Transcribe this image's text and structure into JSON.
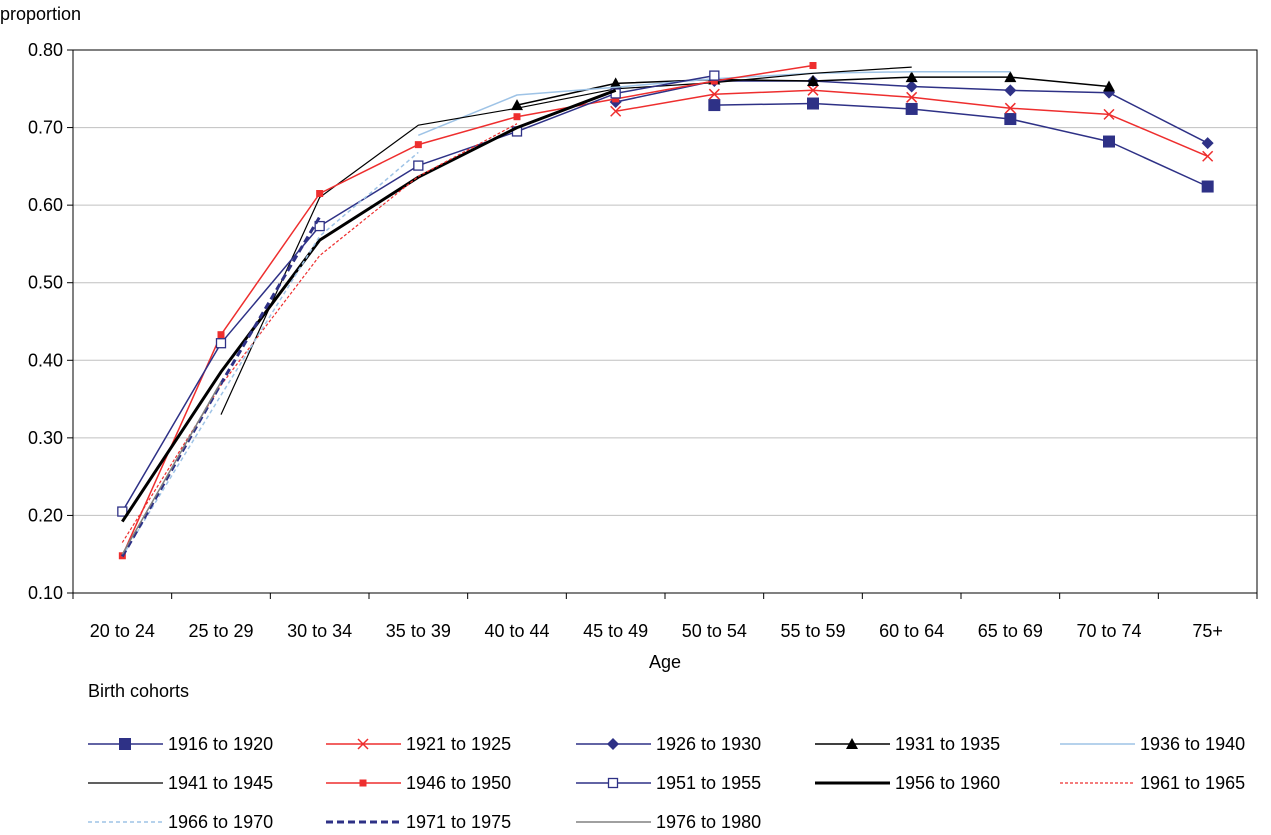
{
  "chart_data": {
    "type": "line",
    "title": "",
    "ylabel": "proportion",
    "xlabel": "Age",
    "legend_title": "Birth cohorts",
    "legend_position": "bottom",
    "grid": true,
    "ylim": [
      0.1,
      0.8
    ],
    "yticks": [
      "0.10",
      "0.20",
      "0.30",
      "0.40",
      "0.50",
      "0.60",
      "0.70",
      "0.80"
    ],
    "categories": [
      "20 to 24",
      "25 to 29",
      "30 to 34",
      "35 to 39",
      "40 to 44",
      "45 to 49",
      "50 to 54",
      "55 to 59",
      "60 to 64",
      "65 to 69",
      "70 to 74",
      "75+"
    ],
    "series": [
      {
        "name": "1916 to 1920",
        "color": "#2e3186",
        "width": 1.5,
        "dash": "",
        "marker": "square-lg",
        "values": [
          null,
          null,
          null,
          null,
          null,
          null,
          0.729,
          0.731,
          0.724,
          0.711,
          0.682,
          0.624
        ]
      },
      {
        "name": "1921 to 1925",
        "color": "#ee2e2e",
        "width": 1.5,
        "dash": "",
        "marker": "x",
        "values": [
          null,
          null,
          null,
          null,
          null,
          0.721,
          0.743,
          0.748,
          0.739,
          0.725,
          0.717,
          0.663
        ]
      },
      {
        "name": "1926 to 1930",
        "color": "#2e3186",
        "width": 1.5,
        "dash": "",
        "marker": "diamond",
        "values": [
          null,
          null,
          null,
          null,
          null,
          0.733,
          0.76,
          0.76,
          0.753,
          0.748,
          0.745,
          0.68
        ]
      },
      {
        "name": "1931 to 1935",
        "color": "#000000",
        "width": 1.5,
        "dash": "",
        "marker": "triangle",
        "values": [
          null,
          null,
          null,
          null,
          0.729,
          0.757,
          0.762,
          0.76,
          0.765,
          0.765,
          0.753,
          null
        ]
      },
      {
        "name": "1936 to 1940",
        "color": "#9ec3e6",
        "width": 1.5,
        "dash": "",
        "marker": "none",
        "values": [
          null,
          null,
          null,
          0.69,
          0.742,
          0.752,
          0.763,
          0.77,
          0.772,
          0.772,
          null,
          null
        ]
      },
      {
        "name": "1941 to 1945",
        "color": "#000000",
        "width": 1.2,
        "dash": "",
        "marker": "none",
        "values": [
          null,
          0.33,
          0.61,
          0.703,
          0.725,
          0.75,
          0.758,
          0.77,
          0.778,
          null,
          null,
          null
        ]
      },
      {
        "name": "1946 to 1950",
        "color": "#ee2e2e",
        "width": 1.5,
        "dash": "",
        "marker": "square-sm",
        "values": [
          0.148,
          0.433,
          0.615,
          0.678,
          0.714,
          0.737,
          0.76,
          0.78,
          null,
          null,
          null,
          null
        ]
      },
      {
        "name": "1951 to 1955",
        "color": "#2e3186",
        "width": 1.5,
        "dash": "",
        "marker": "square-open",
        "values": [
          0.205,
          0.422,
          0.573,
          0.651,
          0.695,
          0.744,
          0.767,
          null,
          null,
          null,
          null,
          null
        ]
      },
      {
        "name": "1956 to 1960",
        "color": "#000000",
        "width": 3,
        "dash": "",
        "marker": "none",
        "values": [
          0.192,
          0.385,
          0.555,
          0.636,
          0.7,
          0.748,
          null,
          null,
          null,
          null,
          null,
          null
        ]
      },
      {
        "name": "1961 to 1965",
        "color": "#ee2e2e",
        "width": 1.2,
        "dash": "3,2",
        "marker": "none",
        "values": [
          0.165,
          0.368,
          0.535,
          0.637,
          0.705,
          null,
          null,
          null,
          null,
          null,
          null,
          null
        ]
      },
      {
        "name": "1966 to 1970",
        "color": "#9ec3e6",
        "width": 1.5,
        "dash": "4,3",
        "marker": "none",
        "values": [
          0.147,
          0.355,
          0.56,
          0.668,
          null,
          null,
          null,
          null,
          null,
          null,
          null,
          null
        ]
      },
      {
        "name": "1971 to 1975",
        "color": "#2e3186",
        "width": 3,
        "dash": "7,4",
        "marker": "none",
        "values": [
          0.147,
          0.37,
          0.585,
          null,
          null,
          null,
          null,
          null,
          null,
          null,
          null,
          null
        ]
      },
      {
        "name": "1976 to 1980",
        "color": "#808080",
        "width": 1.5,
        "dash": "",
        "marker": "none",
        "values": [
          0.15,
          0.372,
          null,
          null,
          null,
          null,
          null,
          null,
          null,
          null,
          null,
          null
        ]
      }
    ]
  }
}
